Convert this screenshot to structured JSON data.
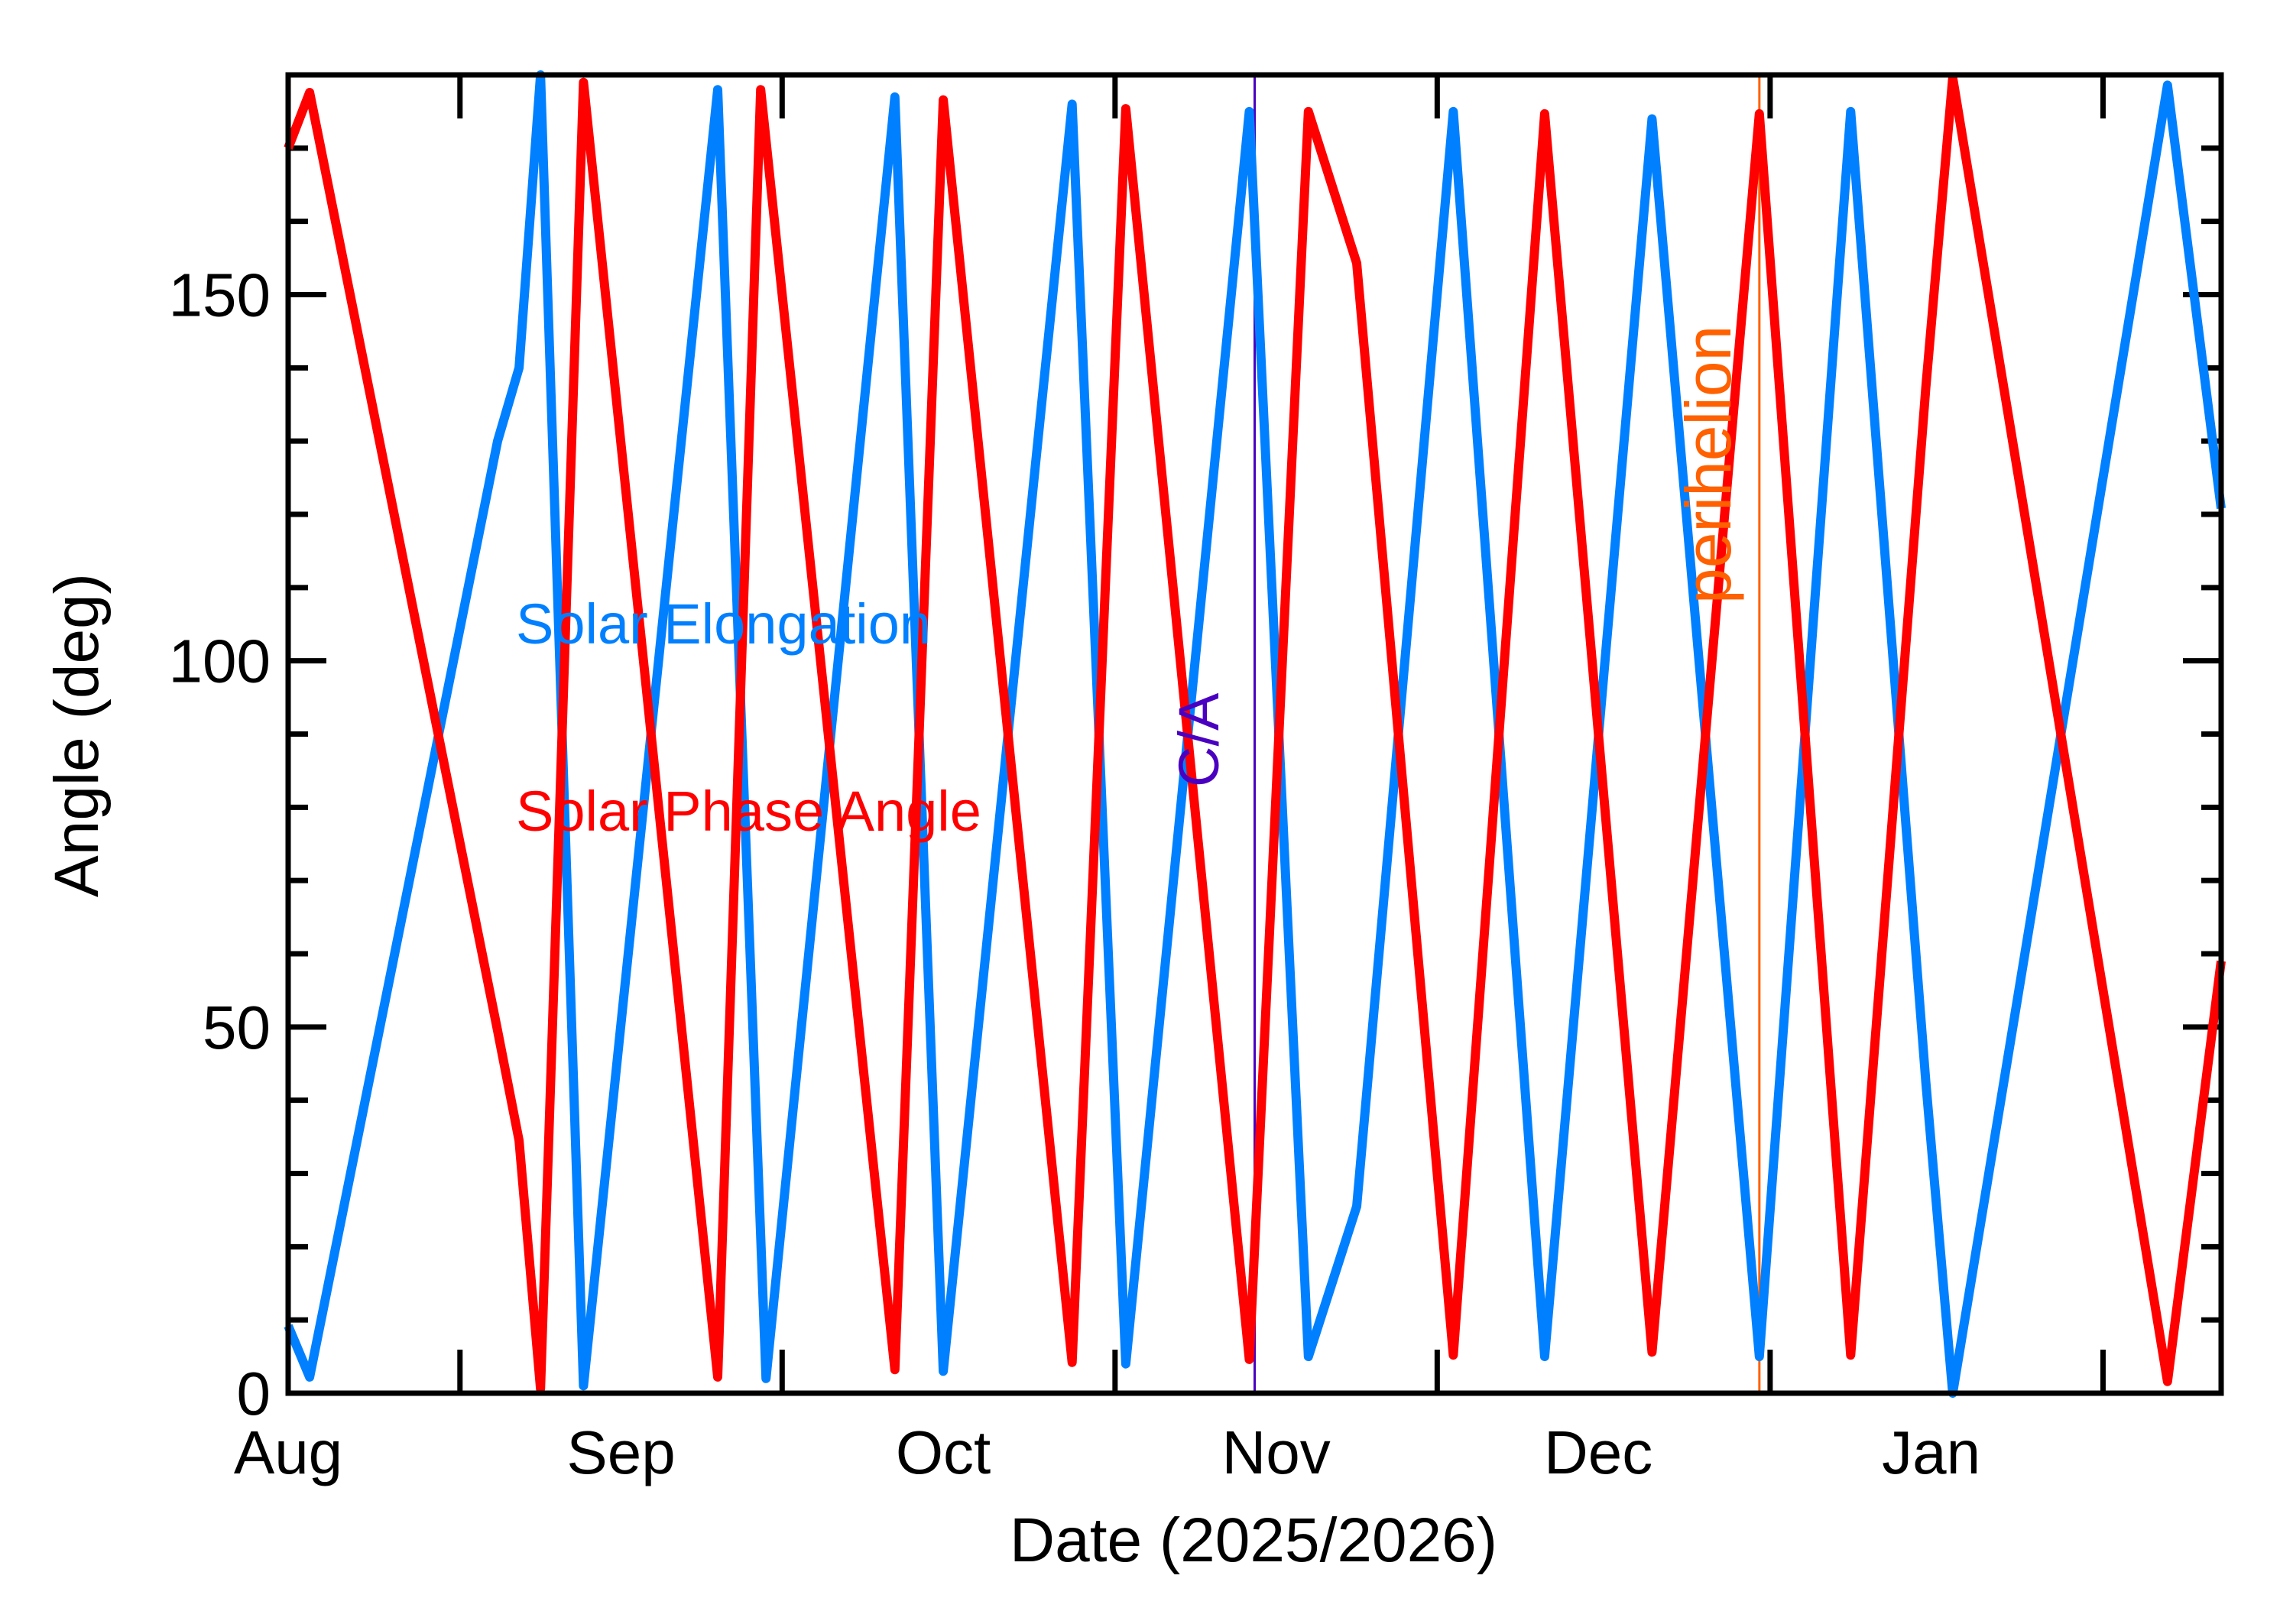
{
  "chart_data": {
    "type": "line",
    "xlabel": "Date (2025/2026)",
    "ylabel": "Angle (deg)",
    "xlim": [
      "2025-08-01",
      "2026-01-28"
    ],
    "ylim": [
      0,
      180
    ],
    "grid": false,
    "y_ticks": [
      0,
      50,
      100,
      150
    ],
    "y_tick_labels": [
      "0",
      "50",
      "100",
      "150"
    ],
    "y_minor_step": 10,
    "x_ticks": [
      "2025-08-01",
      "2025-09-01",
      "2025-10-01",
      "2025-11-01",
      "2025-12-01",
      "2026-01-01"
    ],
    "x_tick_labels": [
      "Aug",
      "Sep",
      "Oct",
      "Nov",
      "Dec",
      "Jan"
    ],
    "x_tick_marks": [
      "2025-08-17",
      "2025-09-16",
      "2025-10-17",
      "2025-11-16",
      "2025-12-17",
      "2026-01-17"
    ],
    "legend_placement": "inside-left",
    "series": [
      {
        "name": "Solar Elongation",
        "color": "#0080ff",
        "points": [
          [
            "2025-08-01",
            9.2
          ],
          [
            "2025-08-03",
            2.2
          ],
          [
            "2025-08-20T12",
            130
          ],
          [
            "2025-08-22T12",
            140
          ],
          [
            "2025-08-24T12",
            180
          ],
          [
            "2025-08-28T12",
            1
          ],
          [
            "2025-09-10",
            178
          ],
          [
            "2025-09-14T12",
            2
          ],
          [
            "2025-09-26T12",
            177
          ],
          [
            "2025-10-01",
            3
          ],
          [
            "2025-10-13",
            176
          ],
          [
            "2025-10-18",
            4
          ],
          [
            "2025-10-29T12",
            175
          ],
          [
            "2025-11-04",
            5
          ],
          [
            "2025-11-08T12",
            25.5
          ],
          [
            "2025-11-17T12",
            175
          ],
          [
            "2025-11-26",
            5
          ],
          [
            "2025-12-06",
            174
          ],
          [
            "2025-12-16",
            5
          ],
          [
            "2025-12-24T12",
            175
          ],
          [
            "2025-12-31T12",
            42.5
          ],
          [
            "2026-01-03",
            0
          ],
          [
            "2026-01-23",
            178.6
          ],
          [
            "2026-01-28",
            120.8
          ]
        ]
      },
      {
        "name": "Solar Phase Angle",
        "color": "#ff0000",
        "points": [
          [
            "2025-08-01",
            170
          ],
          [
            "2025-08-03",
            177.6
          ],
          [
            "2025-08-20T12",
            49.5
          ],
          [
            "2025-08-22T12",
            34.5
          ],
          [
            "2025-08-24T12",
            0.6
          ],
          [
            "2025-08-28T12",
            179
          ],
          [
            "2025-09-10",
            2.2
          ],
          [
            "2025-09-14",
            178
          ],
          [
            "2025-09-26T12",
            3.2
          ],
          [
            "2025-10-01",
            176.6
          ],
          [
            "2025-10-13",
            4.2
          ],
          [
            "2025-10-18",
            175.4
          ],
          [
            "2025-10-29T12",
            4.6
          ],
          [
            "2025-11-04",
            175
          ],
          [
            "2025-11-08T12",
            154.3
          ],
          [
            "2025-11-17T12",
            5.2
          ],
          [
            "2025-11-26",
            174.7
          ],
          [
            "2025-12-06",
            5.6
          ],
          [
            "2025-12-16",
            174.7
          ],
          [
            "2025-12-24T12",
            5.2
          ],
          [
            "2025-12-31T12",
            137.3
          ],
          [
            "2026-01-03",
            179.6
          ],
          [
            "2026-01-23",
            1.6
          ],
          [
            "2026-01-28",
            59
          ]
        ]
      }
    ],
    "annotations": [
      {
        "label": "C/A",
        "date": "2025-10-30",
        "color": "#4a00c0"
      },
      {
        "label": "perihelion",
        "date": "2025-12-16",
        "color": "#ff6000"
      }
    ]
  }
}
